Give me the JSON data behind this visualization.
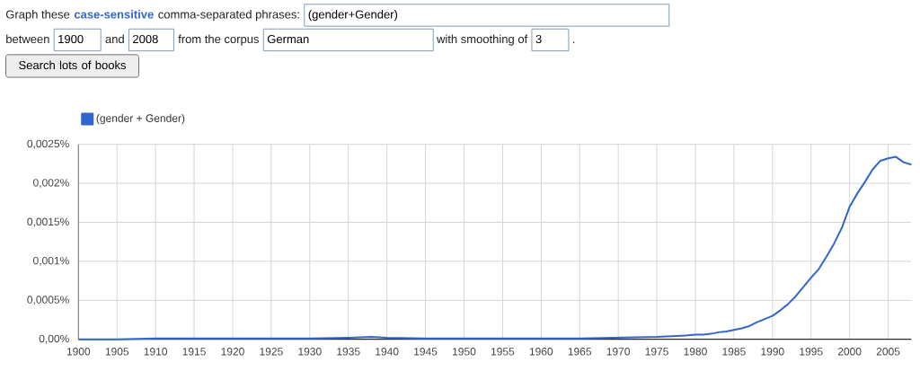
{
  "chart_data": {
    "type": "line",
    "x": [
      1900,
      1905,
      1910,
      1915,
      1920,
      1925,
      1930,
      1935,
      1938,
      1940,
      1945,
      1950,
      1955,
      1960,
      1965,
      1970,
      1975,
      1977,
      1979,
      1980,
      1981,
      1982,
      1983,
      1984,
      1985,
      1986,
      1987,
      1988,
      1989,
      1990,
      1991,
      1992,
      1993,
      1994,
      1995,
      1996,
      1997,
      1998,
      1999,
      2000,
      2001,
      2002,
      2003,
      2004,
      2005,
      2006,
      2007,
      2008
    ],
    "series": [
      {
        "name": "(gender + Gender)",
        "color": "#3366cc",
        "values": [
          0,
          0,
          1e-05,
          1e-05,
          1e-05,
          1e-05,
          1e-05,
          2e-05,
          3e-05,
          2e-05,
          1e-05,
          1e-05,
          1e-05,
          1e-05,
          1e-05,
          2e-05,
          3e-05,
          4e-05,
          5e-05,
          6e-05,
          6e-05,
          7e-05,
          9e-05,
          0.0001,
          0.00012,
          0.00014,
          0.00017,
          0.00022,
          0.00026,
          0.0003,
          0.00037,
          0.00045,
          0.00055,
          0.00067,
          0.00079,
          0.0009,
          0.00106,
          0.00123,
          0.00143,
          0.0017,
          0.00187,
          0.00202,
          0.00218,
          0.00229,
          0.00232,
          0.00234,
          0.00227,
          0.00224
        ]
      }
    ],
    "xlim": [
      1900,
      2008
    ],
    "ylim": [
      0,
      0.0025
    ],
    "xticks": [
      1900,
      1905,
      1910,
      1915,
      1920,
      1925,
      1930,
      1935,
      1940,
      1945,
      1950,
      1955,
      1960,
      1965,
      1970,
      1975,
      1980,
      1985,
      1990,
      1995,
      2000,
      2005
    ],
    "yticks": [
      {
        "value": 0,
        "label": "0,00%"
      },
      {
        "value": 0.0005,
        "label": "0,0005%"
      },
      {
        "value": 0.001,
        "label": "0,001%"
      },
      {
        "value": 0.0015,
        "label": "0,0015%"
      },
      {
        "value": 0.002,
        "label": "0,002%"
      },
      {
        "value": 0.0025,
        "label": "0,0025%"
      }
    ],
    "grid": true,
    "legend": "top left",
    "annotations": [
      "Graph these",
      "case-sensitive",
      "comma-separated phrases:",
      "(gender+Gender)",
      "between",
      "1900",
      "and",
      "2008",
      "from the corpus",
      "German",
      "with smoothing of",
      "3",
      ".",
      "Search lots of books"
    ]
  }
}
